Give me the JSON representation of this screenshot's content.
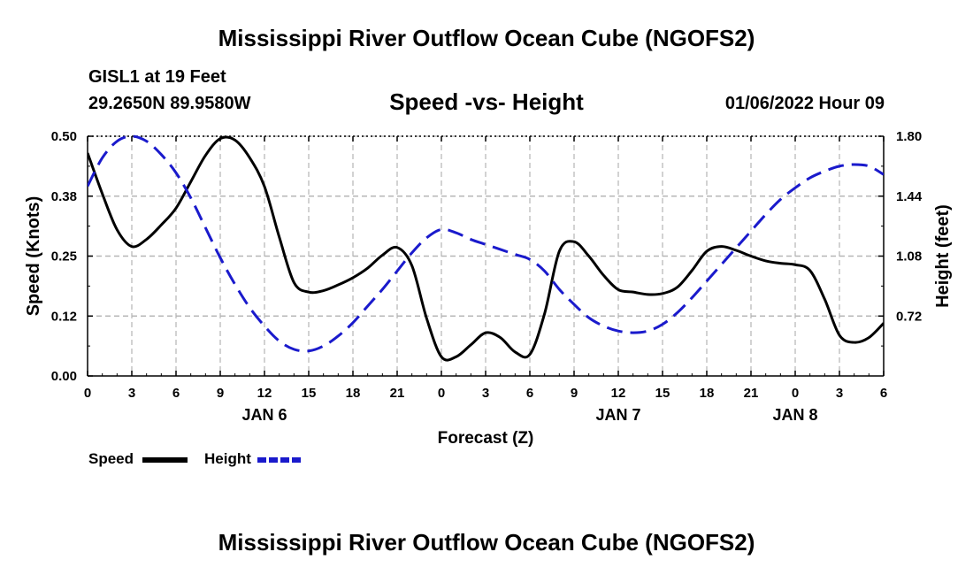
{
  "header": {
    "title": "Mississippi River Outflow Ocean Cube (NGOFS2)",
    "station": "GISL1 at 19 Feet",
    "coords": "29.2650N  89.9580W",
    "subtitle": "Speed -vs- Height",
    "datetime": "01/06/2022 Hour 09",
    "bottom_title": "Mississippi River Outflow Ocean Cube (NGOFS2)"
  },
  "legend": {
    "speed_label": "Speed",
    "height_label": "Height"
  },
  "colors": {
    "speed": "#000000",
    "height": "#1a1acc",
    "grid": "#b4b4b4"
  },
  "chart_data": {
    "type": "line",
    "title": "Speed -vs- Height",
    "xlabel": "Forecast (Z)",
    "ylabel": "Speed (Knots)",
    "y2label": "Height (feet)",
    "xlim": [
      0,
      54
    ],
    "ylim": [
      0,
      0.5
    ],
    "y2lim": [
      0.36,
      1.8
    ],
    "x_ticks": [
      0,
      3,
      6,
      9,
      12,
      15,
      18,
      21,
      24,
      27,
      30,
      33,
      36,
      39,
      42,
      45,
      48,
      51,
      54
    ],
    "x_tick_labels": [
      "0",
      "3",
      "6",
      "9",
      "12",
      "15",
      "18",
      "21",
      "0",
      "3",
      "6",
      "9",
      "12",
      "15",
      "18",
      "21",
      "0",
      "3",
      "6"
    ],
    "y_ticks": [
      0,
      0.125,
      0.25,
      0.375,
      0.5
    ],
    "y_tick_labels": [
      "0.00",
      "0.12",
      "0.25",
      "0.38",
      "0.50"
    ],
    "y2_ticks": [
      0.72,
      1.08,
      1.44,
      1.8
    ],
    "y2_tick_labels": [
      "0.72",
      "1.08",
      "1.44",
      "1.80"
    ],
    "date_labels": [
      {
        "x": 12,
        "label": "JAN 6"
      },
      {
        "x": 36,
        "label": "JAN 7"
      },
      {
        "x": 48,
        "label": "JAN 8"
      }
    ],
    "series": [
      {
        "name": "Speed",
        "axis": "left",
        "style": "solid",
        "x": [
          0,
          1,
          2,
          3,
          4,
          5,
          6,
          7,
          8,
          9,
          10,
          11,
          12,
          13,
          14,
          15,
          16,
          17,
          18,
          19,
          20,
          21,
          22,
          23,
          24,
          25,
          26,
          27,
          28,
          29,
          30,
          31,
          32,
          33,
          34,
          35,
          36,
          37,
          38,
          39,
          40,
          41,
          42,
          43,
          44,
          45,
          46,
          47,
          48,
          49,
          50,
          51,
          52,
          53,
          54
        ],
        "values": [
          0.465,
          0.38,
          0.305,
          0.27,
          0.285,
          0.315,
          0.35,
          0.405,
          0.46,
          0.495,
          0.492,
          0.455,
          0.395,
          0.29,
          0.195,
          0.175,
          0.178,
          0.19,
          0.205,
          0.225,
          0.252,
          0.268,
          0.23,
          0.12,
          0.04,
          0.04,
          0.065,
          0.09,
          0.08,
          0.05,
          0.045,
          0.13,
          0.26,
          0.28,
          0.25,
          0.21,
          0.18,
          0.175,
          0.17,
          0.172,
          0.185,
          0.22,
          0.26,
          0.27,
          0.262,
          0.25,
          0.24,
          0.235,
          0.232,
          0.22,
          0.16,
          0.085,
          0.07,
          0.08,
          0.11
        ]
      },
      {
        "name": "Height",
        "axis": "right",
        "style": "dashed",
        "x": [
          0,
          1,
          2,
          3,
          4,
          5,
          6,
          7,
          8,
          9,
          10,
          11,
          12,
          13,
          14,
          15,
          16,
          17,
          18,
          19,
          20,
          21,
          22,
          23,
          24,
          25,
          26,
          27,
          28,
          29,
          30,
          31,
          32,
          33,
          34,
          35,
          36,
          37,
          38,
          39,
          40,
          41,
          42,
          43,
          44,
          45,
          46,
          47,
          48,
          49,
          50,
          51,
          52,
          53,
          54
        ],
        "values": [
          1.5,
          1.67,
          1.77,
          1.8,
          1.77,
          1.69,
          1.58,
          1.43,
          1.25,
          1.07,
          0.91,
          0.77,
          0.66,
          0.57,
          0.52,
          0.51,
          0.54,
          0.6,
          0.68,
          0.78,
          0.88,
          0.99,
          1.1,
          1.19,
          1.24,
          1.22,
          1.18,
          1.15,
          1.12,
          1.09,
          1.06,
          0.99,
          0.88,
          0.79,
          0.71,
          0.66,
          0.63,
          0.62,
          0.63,
          0.67,
          0.74,
          0.83,
          0.93,
          1.03,
          1.13,
          1.23,
          1.33,
          1.42,
          1.49,
          1.55,
          1.59,
          1.62,
          1.63,
          1.62,
          1.57
        ]
      }
    ]
  }
}
